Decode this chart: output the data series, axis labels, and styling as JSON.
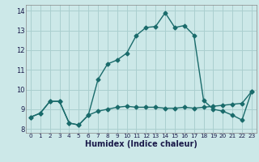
{
  "title": "",
  "xlabel": "Humidex (Indice chaleur)",
  "ylabel": "",
  "background_color": "#cce8e8",
  "line_color": "#1a6b6b",
  "grid_color": "#aacfcf",
  "xlim": [
    -0.5,
    23.5
  ],
  "ylim": [
    7.8,
    14.3
  ],
  "xticks": [
    0,
    1,
    2,
    3,
    4,
    5,
    6,
    7,
    8,
    9,
    10,
    11,
    12,
    13,
    14,
    15,
    16,
    17,
    18,
    19,
    20,
    21,
    22,
    23
  ],
  "yticks": [
    8,
    9,
    10,
    11,
    12,
    13,
    14
  ],
  "line1_x": [
    0,
    1,
    2,
    3,
    4,
    5,
    6,
    7,
    8,
    9,
    10,
    11,
    12,
    13,
    14,
    15,
    16,
    17,
    18,
    19,
    20,
    21,
    22,
    23
  ],
  "line1_y": [
    8.6,
    8.8,
    9.4,
    9.4,
    8.3,
    8.2,
    8.7,
    8.9,
    9.0,
    9.1,
    9.15,
    9.1,
    9.1,
    9.1,
    9.05,
    9.05,
    9.1,
    9.05,
    9.1,
    9.15,
    9.2,
    9.25,
    9.3,
    9.9
  ],
  "line2_x": [
    0,
    1,
    2,
    3,
    4,
    5,
    6,
    7,
    8,
    9,
    10,
    11,
    12,
    13,
    14,
    15,
    16,
    17,
    18,
    19,
    20,
    21,
    22,
    23
  ],
  "line2_y": [
    8.6,
    8.8,
    9.4,
    9.4,
    8.3,
    8.2,
    8.7,
    10.5,
    11.3,
    11.5,
    11.85,
    12.75,
    13.15,
    13.2,
    13.9,
    13.15,
    13.25,
    12.75,
    9.45,
    9.0,
    8.9,
    8.7,
    8.45,
    9.9
  ],
  "marker": "D",
  "markersize": 2.5,
  "linewidth": 1.0,
  "tick_fontsize": 6.0,
  "xlabel_fontsize": 7.0
}
